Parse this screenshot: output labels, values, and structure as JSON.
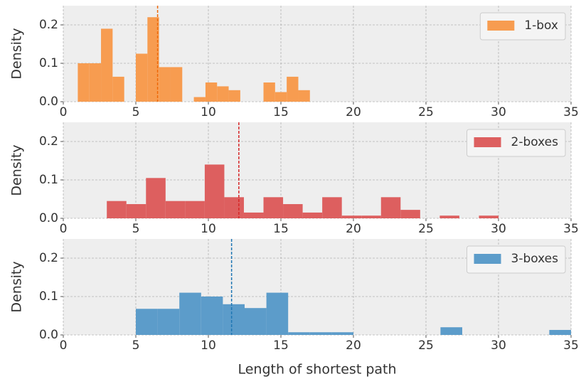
{
  "chart_data": [
    {
      "type": "histogram",
      "ylabel": "Density",
      "bins": [
        1,
        1.8,
        2.6,
        3.4,
        4.2,
        5,
        5.8,
        6.6,
        7.4,
        8.2,
        9,
        9.8,
        10.6,
        11.4,
        12.2,
        13,
        13.8,
        14.6,
        15.4,
        16.2,
        17
      ],
      "series": [
        {
          "name": "1-box",
          "color": "#f79c50",
          "values": [
            0.1,
            0.1,
            0.19,
            0.065,
            0,
            0.125,
            0.22,
            0.09,
            0.09,
            0,
            0.012,
            0.05,
            0.04,
            0.03,
            0,
            0,
            0.05,
            0.025,
            0.065,
            0.03
          ]
        }
      ],
      "mean_line": {
        "value": 6.5,
        "color": "#ee6a0a"
      },
      "xlim": [
        0,
        35
      ],
      "xticks": [
        0,
        5,
        10,
        15,
        20,
        25,
        30,
        35
      ],
      "ylim": [
        0,
        0.25
      ],
      "yticks": [
        {
          "value": 0,
          "label": "0.0"
        },
        {
          "value": 0.1,
          "label": "0.1"
        },
        {
          "value": 0.2,
          "label": "0.2"
        }
      ],
      "grid": true,
      "legend": "upper right"
    },
    {
      "type": "histogram",
      "ylabel": "Density",
      "bins": [
        3,
        4.35,
        5.7,
        7.05,
        8.4,
        9.75,
        11.1,
        12.45,
        13.8,
        15.15,
        16.5,
        17.85,
        19.2,
        20.55,
        21.9,
        23.25,
        24.6,
        25.95,
        27.3,
        28.65,
        30
      ],
      "series": [
        {
          "name": "2-boxes",
          "color": "#dd5f5f",
          "values": [
            0.045,
            0.037,
            0.105,
            0.045,
            0.045,
            0.14,
            0.055,
            0.015,
            0.055,
            0.037,
            0.015,
            0.055,
            0.007,
            0.007,
            0.055,
            0.022,
            0,
            0.007,
            0,
            0.007
          ]
        }
      ],
      "mean_line": {
        "value": 12.1,
        "color": "#d62728"
      },
      "xlim": [
        0,
        35
      ],
      "xticks": [
        0,
        5,
        10,
        15,
        20,
        25,
        30,
        35
      ],
      "ylim": [
        0,
        0.25
      ],
      "yticks": [
        {
          "value": 0,
          "label": "0.0"
        },
        {
          "value": 0.1,
          "label": "0.1"
        },
        {
          "value": 0.2,
          "label": "0.2"
        }
      ],
      "grid": true,
      "legend": "upper right"
    },
    {
      "type": "histogram",
      "ylabel": "Density",
      "xlabel": "Length of shortest path",
      "bins": [
        5,
        6.5,
        8,
        9.5,
        11,
        12.5,
        14,
        15.5,
        17,
        18.5,
        20,
        21.5,
        23,
        24.5,
        26,
        27.5,
        29,
        30.5,
        32,
        33.5,
        35
      ],
      "series": [
        {
          "name": "3-boxes",
          "color": "#5c9cca",
          "values": [
            0.068,
            0.068,
            0.11,
            0.1,
            0.08,
            0.07,
            0.11,
            0.007,
            0.007,
            0.007,
            0,
            0,
            0,
            0,
            0.02,
            0,
            0,
            0,
            0,
            0.013
          ]
        }
      ],
      "mean_line": {
        "value": 11.6,
        "color": "#1f77b4"
      },
      "xlim": [
        0,
        35
      ],
      "xticks": [
        0,
        5,
        10,
        15,
        20,
        25,
        30,
        35
      ],
      "ylim": [
        0,
        0.25
      ],
      "yticks": [
        {
          "value": 0,
          "label": "0.0"
        },
        {
          "value": 0.1,
          "label": "0.1"
        },
        {
          "value": 0.2,
          "label": "0.2"
        }
      ],
      "grid": true,
      "legend": "upper right"
    }
  ]
}
